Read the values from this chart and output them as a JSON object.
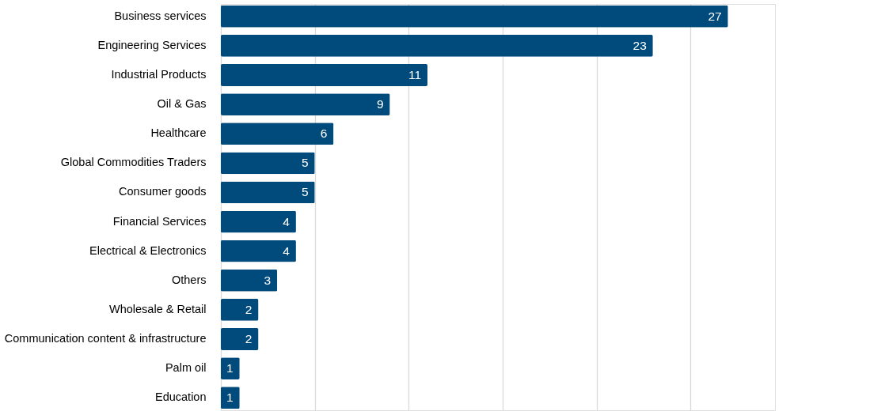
{
  "chart_data": {
    "type": "bar",
    "orientation": "horizontal",
    "categories": [
      "Business services",
      "Engineering Services",
      "Industrial Products",
      "Oil & Gas",
      "Healthcare",
      "Global Commodities Traders",
      "Consumer goods",
      "Financial Services",
      "Electrical & Electronics",
      "Others",
      "Wholesale & Retail",
      "Communication content & infrastructure",
      "Palm oil",
      "Education"
    ],
    "values": [
      27,
      23,
      11,
      9,
      6,
      5,
      5,
      4,
      4,
      3,
      2,
      2,
      1,
      1
    ],
    "color": "#004a7c",
    "xlim": [
      0,
      29.5
    ],
    "xticks": [
      {
        "value": 0,
        "label": null
      },
      {
        "value": 5,
        "label": null
      },
      {
        "value": 10,
        "label": null
      },
      {
        "value": 15,
        "label": null
      },
      {
        "value": 20,
        "label": null
      },
      {
        "value": 25,
        "label": null
      }
    ],
    "grid": "x",
    "data_labels": true,
    "tick_labels": "y"
  }
}
